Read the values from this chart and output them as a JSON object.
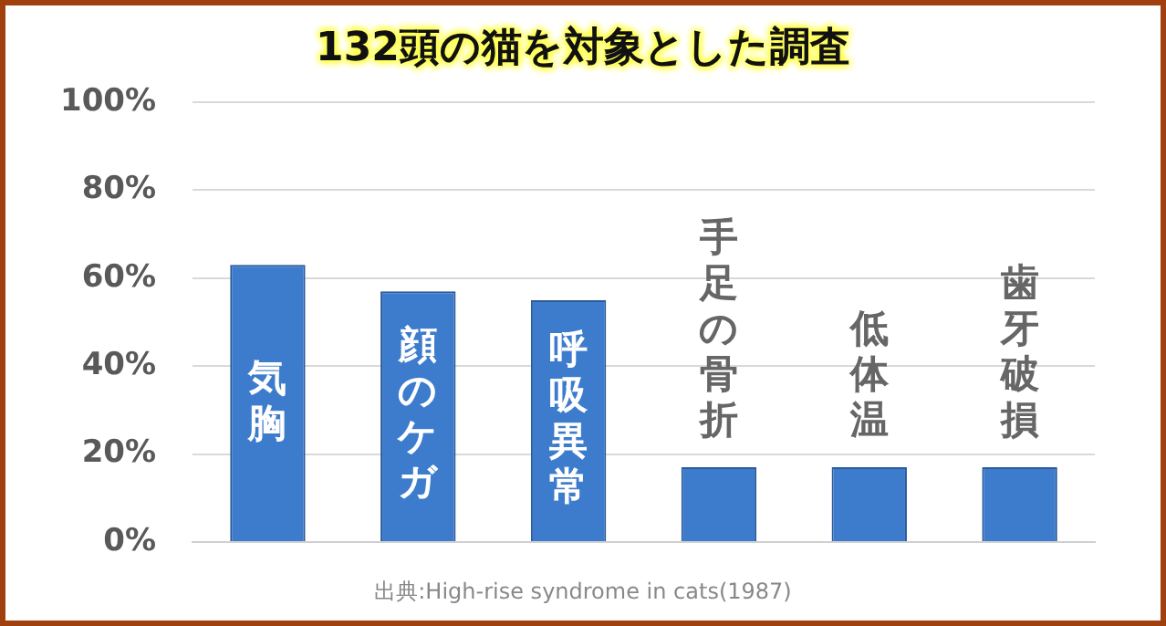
{
  "chart_data": {
    "type": "bar",
    "title": "132頭の猫を対象とした調査",
    "categories": [
      "気胸",
      "顔のケガ",
      "呼吸異常",
      "手足の骨折",
      "低体温",
      "歯牙破損"
    ],
    "values": [
      63,
      57,
      55,
      17,
      17,
      17
    ],
    "color": "#3d7ccc",
    "ylim": [
      0,
      100
    ],
    "yticks": [
      {
        "value": 0,
        "label": "0%"
      },
      {
        "value": 20,
        "label": "20%"
      },
      {
        "value": 40,
        "label": "40%"
      },
      {
        "value": 60,
        "label": "60%"
      },
      {
        "value": 80,
        "label": "80%"
      },
      {
        "value": 100,
        "label": "100%"
      }
    ],
    "grid": "y",
    "legend": false,
    "annotations": [
      "出典:High-rise syndrome in cats(1987)"
    ]
  }
}
